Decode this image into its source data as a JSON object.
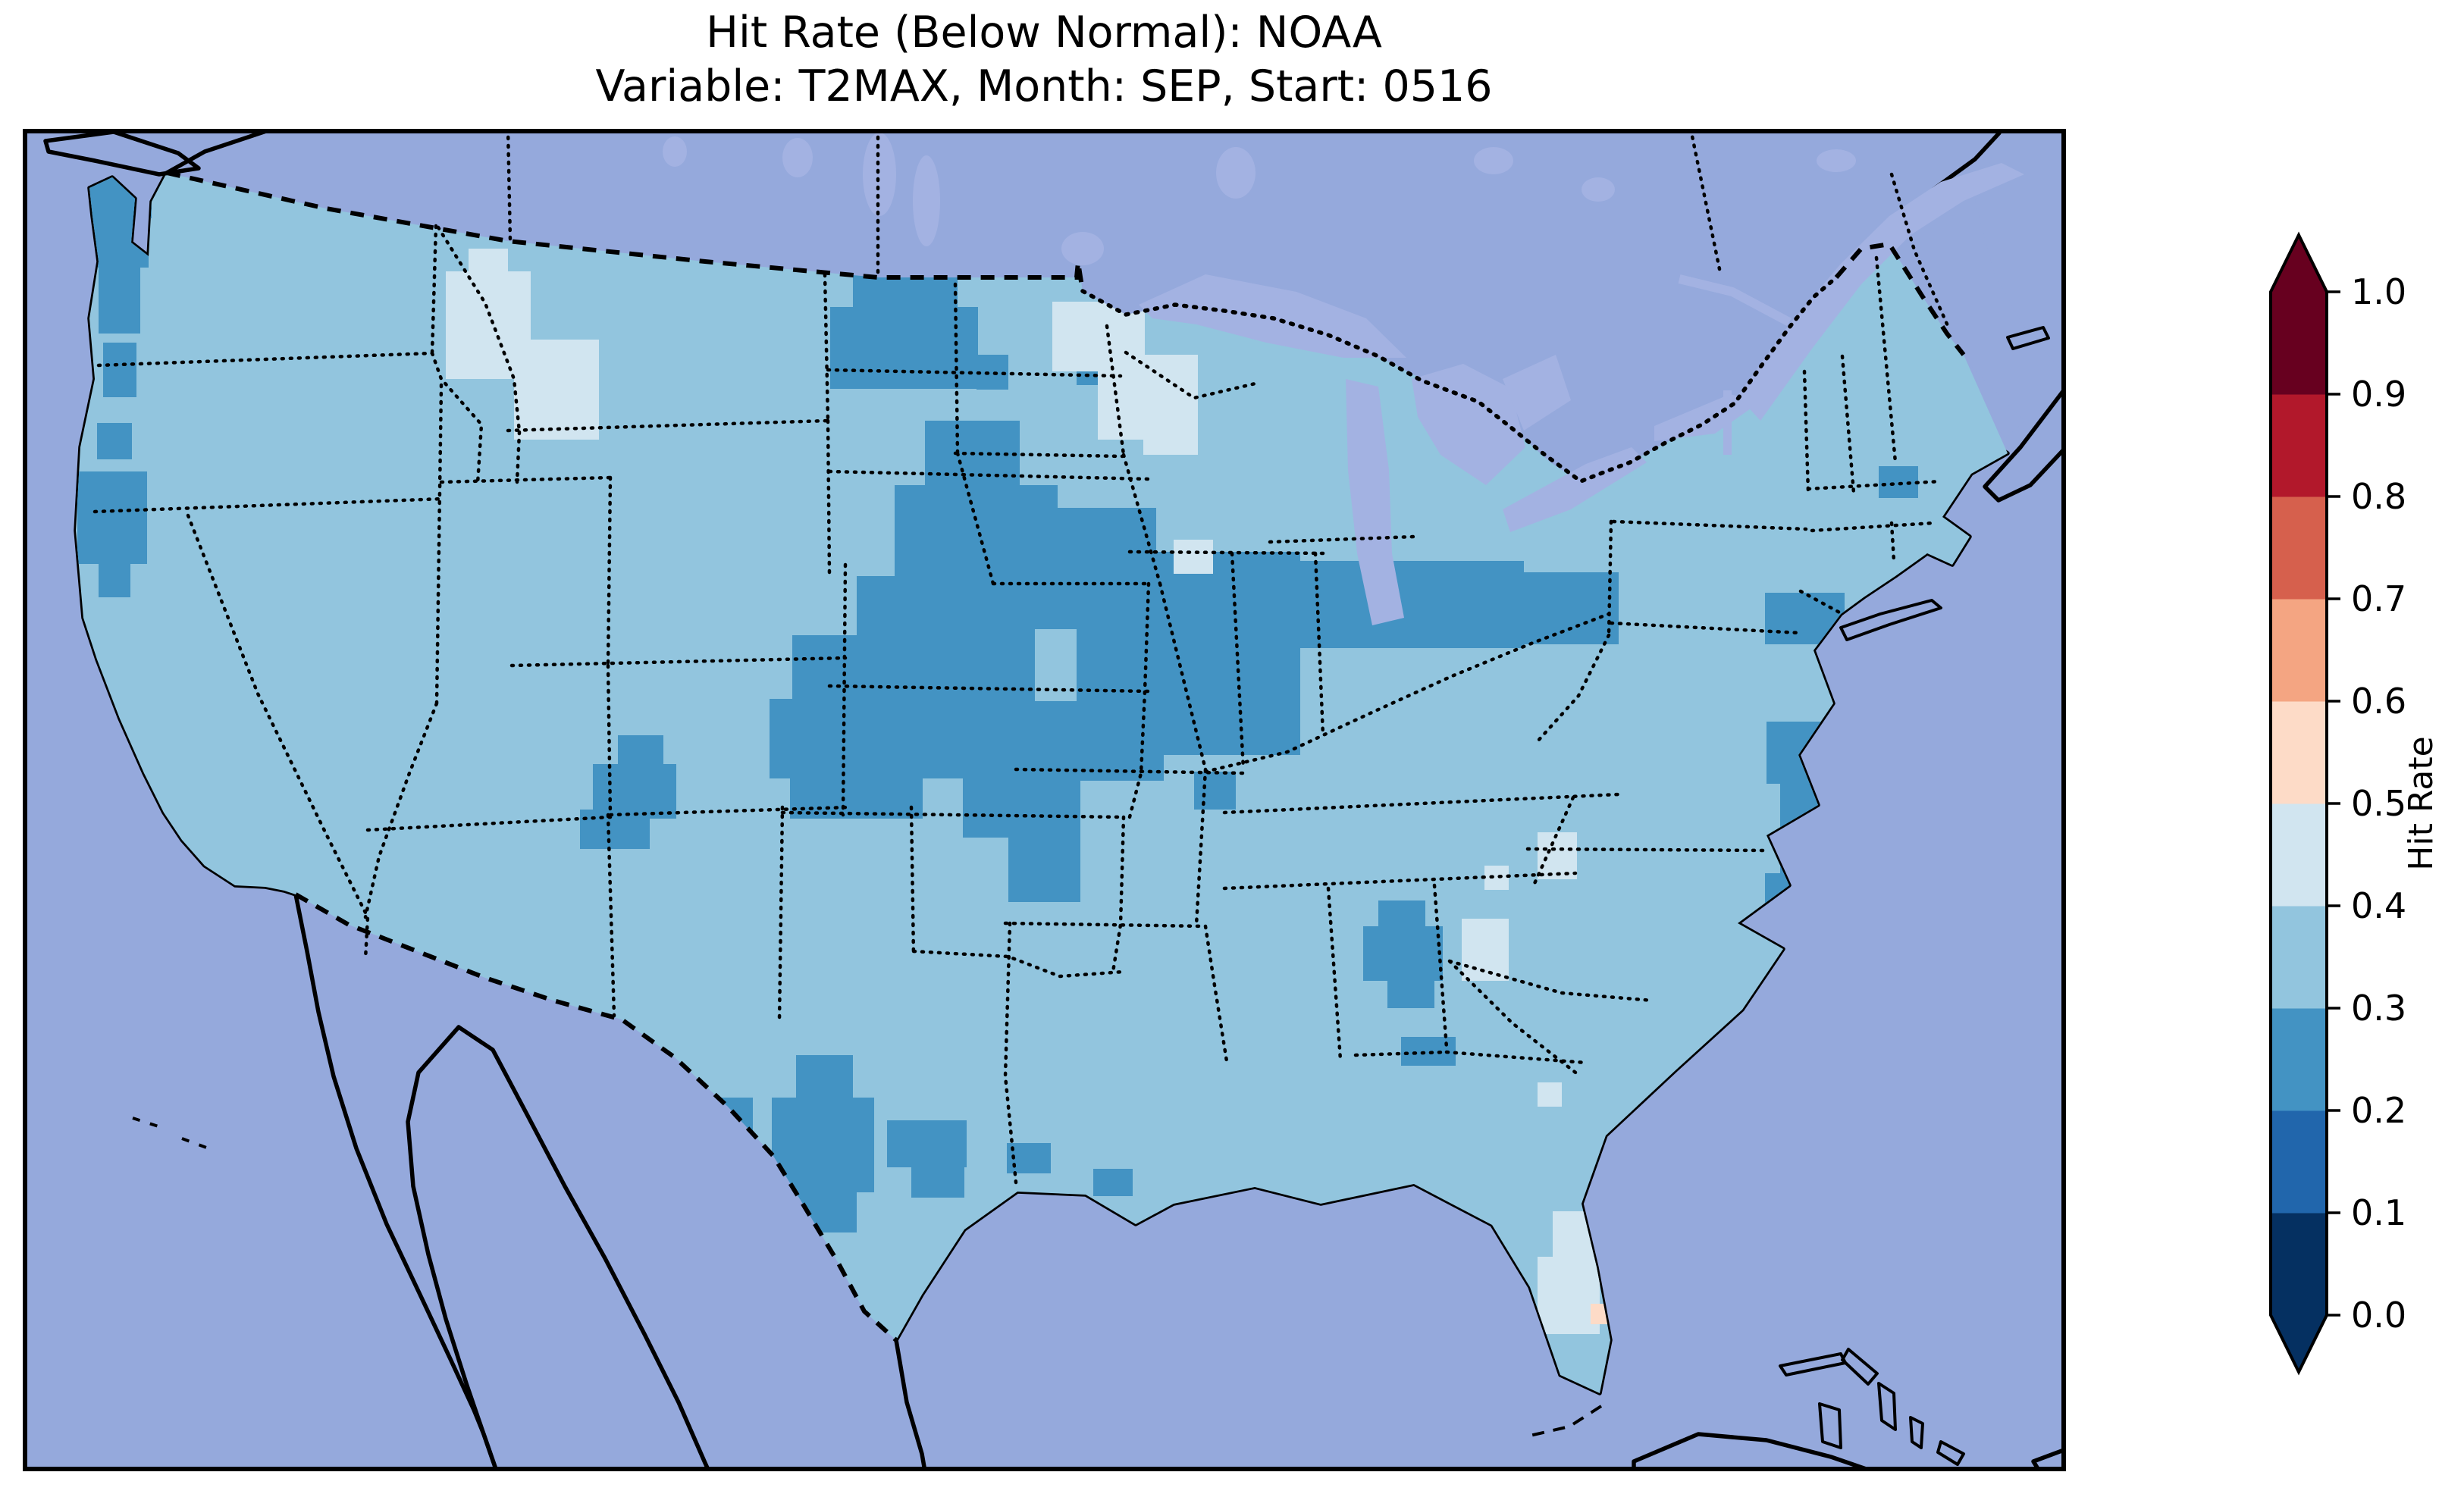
{
  "figure": {
    "title_line1": "Hit Rate (Below Normal): NOAA",
    "title_line2": "Variable: T2MAX, Month: SEP, Start: 0516"
  },
  "chart_data": {
    "type": "heatmap",
    "title": "Hit Rate (Below Normal): NOAA",
    "subtitle": "Variable: T2MAX, Month: SEP, Start: 0516",
    "source": "NOAA",
    "variable": "T2MAX",
    "month": "SEP",
    "start": "0516",
    "category": "Below Normal",
    "region": "Contiguous United States (CONUS) with surrounding Canada, Mexico, Cuba and Bahamas",
    "colorbar": {
      "label": "Hit Rate",
      "range": [
        0.0,
        1.0
      ],
      "bin_size": 0.1,
      "extend": "both",
      "ticks": [
        "0.0",
        "0.1",
        "0.2",
        "0.3",
        "0.4",
        "0.5",
        "0.6",
        "0.7",
        "0.8",
        "0.9",
        "1.0"
      ],
      "bin_colors": [
        "#053061",
        "#2166ac",
        "#4393c3",
        "#92c5de",
        "#d1e5f0",
        "#fddbc7",
        "#f4a582",
        "#d6604d",
        "#b2182b",
        "#67001f"
      ]
    },
    "base_value_range": "0.3-0.4",
    "observations": [
      {
        "area": "Most of CONUS (background field)",
        "hit_rate": "0.3-0.4"
      },
      {
        "area": "Iowa / Nebraska / Illinois / Indiana / Ohio corridor into western Pennsylvania",
        "hit_rate": "0.2-0.3"
      },
      {
        "area": "Northwest Minnesota / eastern North Dakota",
        "hit_rate": "0.2-0.3"
      },
      {
        "area": "Central Colorado Rockies",
        "hit_rate": "0.2-0.3"
      },
      {
        "area": "South-central Texas and upper Texas / Louisiana coast",
        "hit_rate": "0.2-0.3"
      },
      {
        "area": "Western Washington (Puget Sound) and northern California coast",
        "hit_rate": "0.2-0.3"
      },
      {
        "area": "Central Georgia / east-central Alabama and Florida panhandle coast",
        "hit_rate": "0.2-0.3"
      },
      {
        "area": "New Jersey - Delmarva coast and eastern New York",
        "hit_rate": "0.2-0.3"
      },
      {
        "area": "Western Montana and NW Wyoming (two patches)",
        "hit_rate": "0.4-0.5"
      },
      {
        "area": "Northern Wisconsin / Upper Michigan",
        "hit_rate": "0.4-0.5"
      },
      {
        "area": "Central South Carolina and SC coast",
        "hit_rate": "0.4-0.5"
      },
      {
        "area": "Southeastern Arizona border",
        "hit_rate": "0.4-0.5"
      },
      {
        "area": "South Florida peninsula",
        "hit_rate": "0.4-0.5"
      },
      {
        "area": "Two cells just west of the Florida Keys",
        "hit_rate": "0.5-0.6"
      }
    ],
    "grid_cells_approx": {
      "note": "Rectangles [x,y,w,h] in map viewBox units (2695x1771); bin index refers to colorbar.bin_colors",
      "patches": [
        {
          "bin": 2,
          "rects": [
            [
              88,
              55,
              78,
              128
            ],
            [
              100,
              175,
              55,
              95
            ],
            [
              122,
              58,
              48,
              60
            ],
            [
              106,
              282,
              44,
              72
            ],
            [
              98,
              388,
              46,
              48
            ],
            [
              72,
              452,
              92,
              122
            ],
            [
              100,
              572,
              42,
              46
            ],
            [
              1095,
              180,
              138,
              62
            ],
            [
              1065,
              235,
              195,
              108
            ],
            [
              1258,
              298,
              42,
              46
            ],
            [
              1390,
              296,
              32,
              42
            ],
            [
              1190,
              385,
              125,
              100
            ],
            [
              1150,
              470,
              215,
              155
            ],
            [
              1330,
              500,
              165,
              160
            ],
            [
              1390,
              640,
              115,
              220
            ],
            [
              1300,
              755,
              95,
              265
            ],
            [
              1240,
              840,
              70,
              95
            ],
            [
              1180,
              520,
              145,
              85
            ],
            [
              1100,
              590,
              235,
              95
            ],
            [
              1015,
              668,
              320,
              95
            ],
            [
              985,
              752,
              330,
              105
            ],
            [
              1012,
              852,
              175,
              58
            ],
            [
              1450,
              558,
              235,
              268
            ],
            [
              1680,
              570,
              300,
              115
            ],
            [
              1975,
              585,
              130,
              95
            ],
            [
              1545,
              848,
              55,
              50
            ],
            [
              785,
              800,
              60,
              45
            ],
            [
              752,
              838,
              110,
              72
            ],
            [
              735,
              898,
              92,
              52
            ],
            [
              1020,
              1222,
              75,
              62
            ],
            [
              988,
              1278,
              135,
              125
            ],
            [
              1012,
              1398,
              88,
              58
            ],
            [
              868,
              1278,
              95,
              72
            ],
            [
              1140,
              1308,
              105,
              62
            ],
            [
              1172,
              1362,
              70,
              48
            ],
            [
              1298,
              1338,
              58,
              40
            ],
            [
              1412,
              1372,
              52,
              36
            ],
            [
              1788,
              1018,
              62,
              42
            ],
            [
              1768,
              1052,
              105,
              72
            ],
            [
              1800,
              1120,
              62,
              40
            ],
            [
              1818,
              1198,
              72,
              38
            ],
            [
              2298,
              612,
              105,
              68
            ],
            [
              2300,
              782,
              92,
              82
            ],
            [
              2318,
              862,
              62,
              122
            ],
            [
              2298,
              982,
              62,
              58
            ],
            [
              2448,
              445,
              52,
              42
            ]
          ]
        },
        {
          "bin": 4,
          "rects": [
            [
              558,
              188,
              112,
              142
            ],
            [
              588,
              158,
              52,
              40
            ],
            [
              648,
              278,
              112,
              132
            ],
            [
              1358,
              228,
              122,
              92
            ],
            [
              1418,
              298,
              132,
              112
            ],
            [
              1478,
              388,
              72,
              42
            ],
            [
              1518,
              542,
              52,
              45
            ],
            [
              308,
              1038,
              72,
              58
            ],
            [
              1898,
              1042,
              62,
              82
            ],
            [
              1998,
              928,
              52,
              62
            ],
            [
              1928,
              972,
              32,
              32
            ],
            [
              2018,
              1428,
              62,
              62
            ],
            [
              1998,
              1488,
              82,
              102
            ],
            [
              1998,
              1258,
              32,
              32
            ],
            [
              2132,
              1550,
              28,
              28
            ]
          ]
        },
        {
          "bin": 5,
          "rects": [
            [
              2068,
              1550,
              27,
              27
            ],
            [
              2100,
              1550,
              27,
              27
            ]
          ]
        }
      ]
    }
  },
  "map": {
    "colors": {
      "ocean": "#95a9dc",
      "land": "#f1eedb",
      "lakes": "#a3b2e2",
      "coastline": "#000000"
    }
  }
}
